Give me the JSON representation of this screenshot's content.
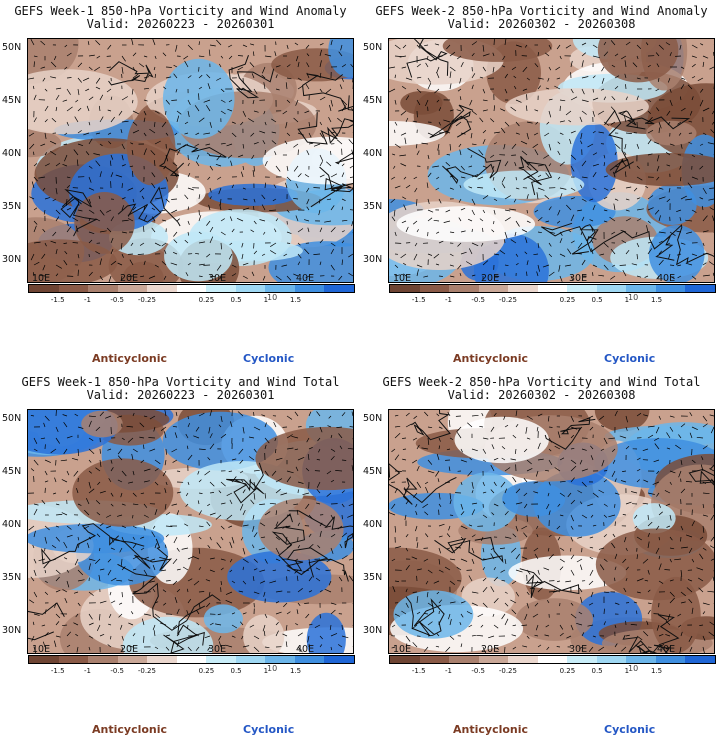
{
  "colors": {
    "anticyclonic_text": "#7b3b23",
    "cyclonic_text": "#2457c5",
    "colorbar": [
      "#6e4433",
      "#8a5a47",
      "#a9806e",
      "#caa898",
      "#ebd7ce",
      "#ffffff",
      "#c9eef9",
      "#9fd8f3",
      "#6cb6ea",
      "#3f8fe0",
      "#1f66d6"
    ]
  },
  "colorbar_ticks": [
    "-1.5",
    "-1",
    "-0.5",
    "-0.25",
    "0.25",
    "0.5",
    "1",
    "1.5"
  ],
  "colorbar_scale": "10",
  "lat_labels": [
    "50N",
    "45N",
    "40N",
    "35N",
    "30N"
  ],
  "lon_labels": [
    "10E",
    "20E",
    "30E",
    "40E"
  ],
  "panels": [
    {
      "title": "GEFS Week-1 850-hPa Vorticity and Wind Anomaly",
      "valid": "Valid: 20260223 - 20260301",
      "anticyclonic": "Anticyclonic",
      "cyclonic": "Cyclonic"
    },
    {
      "title": "GEFS Week-2 850-hPa Vorticity and Wind Anomaly",
      "valid": "Valid: 20260302 - 20260308",
      "anticyclonic": "Anticyclonic",
      "cyclonic": "Cyclonic"
    },
    {
      "title": "GEFS Week-1 850-hPa Vorticity and Wind Total",
      "valid": "Valid: 20260223 - 20260301",
      "anticyclonic": "Anticyclonic",
      "cyclonic": "Cyclonic"
    },
    {
      "title": "GEFS Week-2 850-hPa Vorticity and Wind Total",
      "valid": "Valid: 20260302 - 20260308",
      "anticyclonic": "Anticyclonic",
      "cyclonic": "Cyclonic"
    }
  ]
}
